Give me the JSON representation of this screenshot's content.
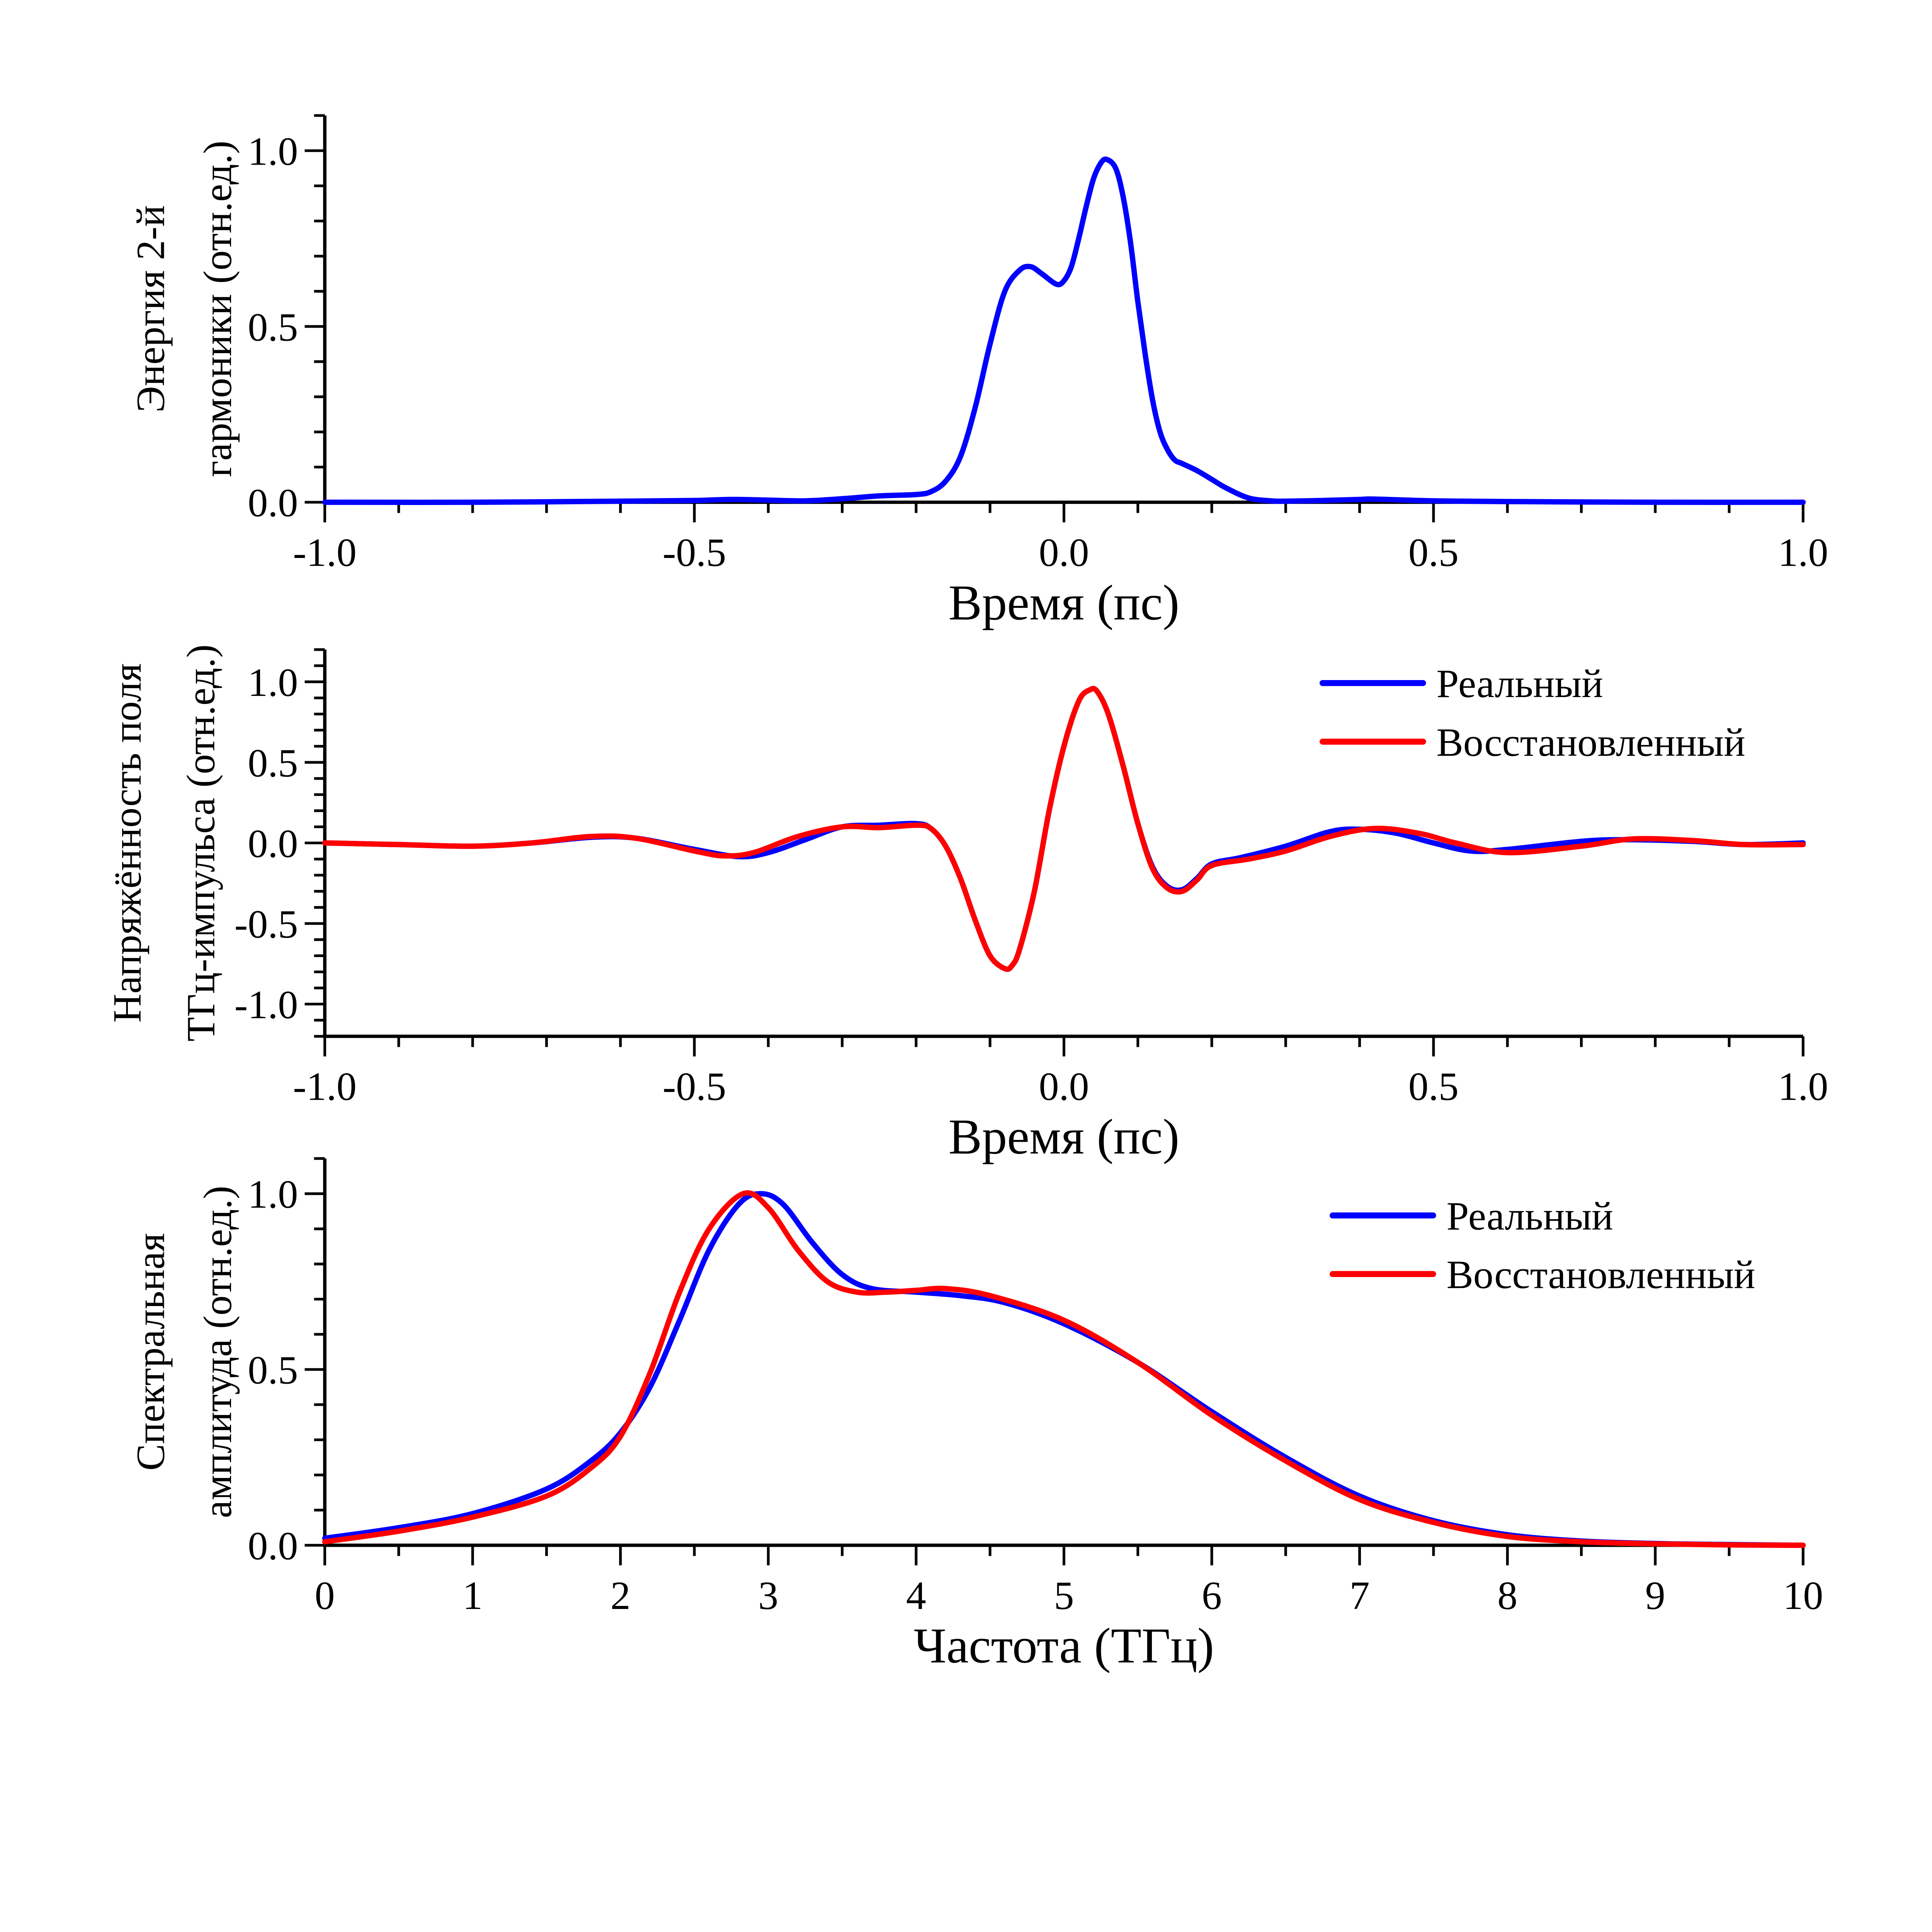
{
  "chart_data": [
    {
      "type": "line",
      "id": "shg-energy",
      "xlabel": "Время (пс)",
      "ylabel_lines": [
        "Энергия 2-й",
        "гармоники (отн.ед.)"
      ],
      "xlim": [
        -1.0,
        1.0
      ],
      "ylim": [
        0.0,
        1.1
      ],
      "xticks": [
        -1.0,
        -0.5,
        0.0,
        0.5,
        1.0
      ],
      "xtick_labels": [
        "-1.0",
        "-0.5",
        "0.0",
        "0.5",
        "1.0"
      ],
      "xminor_step": 0.1,
      "yticks": [
        0.0,
        0.5,
        1.0
      ],
      "ytick_labels": [
        "0.0",
        "0.5",
        "1.0"
      ],
      "yminor_step": 0.1,
      "grid": false,
      "legend": null,
      "series": [
        {
          "name": "",
          "color": "#0000ff",
          "x": [
            -1.0,
            -0.8,
            -0.6,
            -0.5,
            -0.45,
            -0.4,
            -0.35,
            -0.3,
            -0.25,
            -0.2,
            -0.18,
            -0.16,
            -0.14,
            -0.12,
            -0.1,
            -0.08,
            -0.06,
            -0.045,
            -0.03,
            -0.01,
            0.0,
            0.01,
            0.02,
            0.03,
            0.04,
            0.05,
            0.058,
            0.07,
            0.08,
            0.09,
            0.1,
            0.11,
            0.12,
            0.13,
            0.14,
            0.15,
            0.16,
            0.18,
            0.2,
            0.22,
            0.25,
            0.28,
            0.3,
            0.35,
            0.4,
            0.42,
            0.5,
            0.6,
            0.8,
            1.0
          ],
          "y": [
            0.0,
            0.0,
            0.003,
            0.005,
            0.008,
            0.006,
            0.004,
            0.01,
            0.018,
            0.022,
            0.03,
            0.06,
            0.13,
            0.27,
            0.45,
            0.6,
            0.66,
            0.67,
            0.65,
            0.62,
            0.63,
            0.67,
            0.75,
            0.84,
            0.92,
            0.965,
            0.975,
            0.95,
            0.87,
            0.74,
            0.57,
            0.42,
            0.29,
            0.2,
            0.15,
            0.12,
            0.11,
            0.09,
            0.065,
            0.04,
            0.012,
            0.004,
            0.003,
            0.005,
            0.008,
            0.009,
            0.004,
            0.002,
            0.0,
            0.0
          ]
        }
      ]
    },
    {
      "type": "line",
      "id": "thz-field",
      "xlabel": "Время (пс)",
      "ylabel_lines": [
        "Напряжённость поля",
        "ТГц-импульса (отн.ед.)"
      ],
      "xlim": [
        -1.0,
        1.0
      ],
      "ylim": [
        -1.2,
        1.2
      ],
      "xticks": [
        -1.0,
        -0.5,
        0.0,
        0.5,
        1.0
      ],
      "xtick_labels": [
        "-1.0",
        "-0.5",
        "0.0",
        "0.5",
        "1.0"
      ],
      "xminor_step": 0.1,
      "yticks": [
        -1.0,
        -0.5,
        0.0,
        0.5,
        1.0
      ],
      "ytick_labels": [
        "-1.0",
        "-0.5",
        "0.0",
        "0.5",
        "1.0"
      ],
      "yminor_step": 0.1,
      "grid": false,
      "legend": "top-right",
      "series": [
        {
          "name": "Реальный",
          "color": "#0000ff",
          "x": [
            -1.0,
            -0.9,
            -0.8,
            -0.72,
            -0.64,
            -0.58,
            -0.5,
            -0.44,
            -0.4,
            -0.35,
            -0.3,
            -0.25,
            -0.2,
            -0.18,
            -0.16,
            -0.14,
            -0.12,
            -0.1,
            -0.08,
            -0.07,
            -0.06,
            -0.04,
            -0.02,
            0.0,
            0.02,
            0.035,
            0.045,
            0.06,
            0.08,
            0.1,
            0.12,
            0.14,
            0.16,
            0.18,
            0.2,
            0.24,
            0.3,
            0.36,
            0.4,
            0.45,
            0.5,
            0.55,
            0.6,
            0.7,
            0.76,
            0.85,
            0.92,
            1.0
          ],
          "y": [
            0.0,
            -0.01,
            -0.02,
            0.0,
            0.035,
            0.03,
            -0.04,
            -0.085,
            -0.06,
            0.02,
            0.1,
            0.11,
            0.12,
            0.09,
            -0.02,
            -0.22,
            -0.48,
            -0.7,
            -0.78,
            -0.76,
            -0.66,
            -0.3,
            0.2,
            0.6,
            0.88,
            0.95,
            0.94,
            0.8,
            0.48,
            0.12,
            -0.15,
            -0.27,
            -0.29,
            -0.22,
            -0.13,
            -0.09,
            -0.02,
            0.07,
            0.085,
            0.06,
            0.0,
            -0.05,
            -0.04,
            0.01,
            0.02,
            0.01,
            -0.01,
            0.0
          ]
        },
        {
          "name": "Восстановленный",
          "color": "#ff0000",
          "x": [
            -1.0,
            -0.9,
            -0.8,
            -0.72,
            -0.64,
            -0.58,
            -0.5,
            -0.46,
            -0.42,
            -0.36,
            -0.3,
            -0.25,
            -0.2,
            -0.18,
            -0.16,
            -0.14,
            -0.12,
            -0.1,
            -0.08,
            -0.07,
            -0.06,
            -0.04,
            -0.02,
            0.0,
            0.02,
            0.035,
            0.045,
            0.06,
            0.08,
            0.1,
            0.12,
            0.14,
            0.16,
            0.18,
            0.2,
            0.25,
            0.3,
            0.36,
            0.42,
            0.48,
            0.53,
            0.6,
            0.7,
            0.77,
            0.85,
            0.92,
            1.0
          ],
          "y": [
            0.0,
            -0.01,
            -0.02,
            0.0,
            0.04,
            0.03,
            -0.05,
            -0.08,
            -0.06,
            0.04,
            0.1,
            0.095,
            0.11,
            0.09,
            -0.02,
            -0.22,
            -0.48,
            -0.7,
            -0.78,
            -0.76,
            -0.66,
            -0.3,
            0.2,
            0.6,
            0.88,
            0.95,
            0.94,
            0.8,
            0.48,
            0.12,
            -0.16,
            -0.28,
            -0.3,
            -0.23,
            -0.14,
            -0.1,
            -0.05,
            0.04,
            0.09,
            0.06,
            0.0,
            -0.06,
            -0.02,
            0.025,
            0.015,
            -0.01,
            -0.01
          ]
        }
      ]
    },
    {
      "type": "line",
      "id": "spectrum",
      "xlabel": "Частота (ТГц)",
      "ylabel_lines": [
        "Спектральная",
        "амплитуда (отн.ед.)"
      ],
      "xlim": [
        0,
        10
      ],
      "ylim": [
        0.0,
        1.1
      ],
      "xticks": [
        0,
        1,
        2,
        3,
        4,
        5,
        6,
        7,
        8,
        9,
        10
      ],
      "xtick_labels": [
        "0",
        "1",
        "2",
        "3",
        "4",
        "5",
        "6",
        "7",
        "8",
        "9",
        "10"
      ],
      "xminor_step": 0.5,
      "yticks": [
        0.0,
        0.5,
        1.0
      ],
      "ytick_labels": [
        "0.0",
        "0.5",
        "1.0"
      ],
      "yminor_step": 0.1,
      "grid": false,
      "legend": "top-right",
      "series": [
        {
          "name": "Реальный",
          "color": "#0000ff",
          "x": [
            0,
            0.5,
            1.0,
            1.5,
            1.8,
            2.0,
            2.2,
            2.4,
            2.6,
            2.8,
            2.95,
            3.1,
            3.3,
            3.5,
            3.7,
            4.0,
            4.3,
            4.6,
            5.0,
            5.5,
            6.0,
            6.5,
            7.0,
            7.5,
            8.0,
            8.5,
            9.0,
            9.5,
            10.0
          ],
          "y": [
            0.02,
            0.05,
            0.09,
            0.16,
            0.24,
            0.32,
            0.45,
            0.64,
            0.84,
            0.97,
            1.0,
            0.97,
            0.86,
            0.77,
            0.73,
            0.72,
            0.71,
            0.69,
            0.63,
            0.52,
            0.38,
            0.25,
            0.14,
            0.07,
            0.03,
            0.012,
            0.005,
            0.002,
            0.0
          ]
        },
        {
          "name": "Восстановленный",
          "color": "#ff0000",
          "x": [
            0,
            0.5,
            1.0,
            1.5,
            1.8,
            2.0,
            2.2,
            2.4,
            2.6,
            2.83,
            3.0,
            3.2,
            3.4,
            3.6,
            3.8,
            4.0,
            4.2,
            4.5,
            5.0,
            5.5,
            6.0,
            6.5,
            7.0,
            7.5,
            8.0,
            8.5,
            9.0,
            9.5,
            10.0
          ],
          "y": [
            0.01,
            0.04,
            0.08,
            0.14,
            0.22,
            0.31,
            0.49,
            0.72,
            0.9,
            1.0,
            0.96,
            0.84,
            0.75,
            0.72,
            0.72,
            0.725,
            0.73,
            0.71,
            0.64,
            0.52,
            0.37,
            0.24,
            0.13,
            0.065,
            0.025,
            0.01,
            0.004,
            0.001,
            0.0
          ]
        }
      ]
    }
  ]
}
